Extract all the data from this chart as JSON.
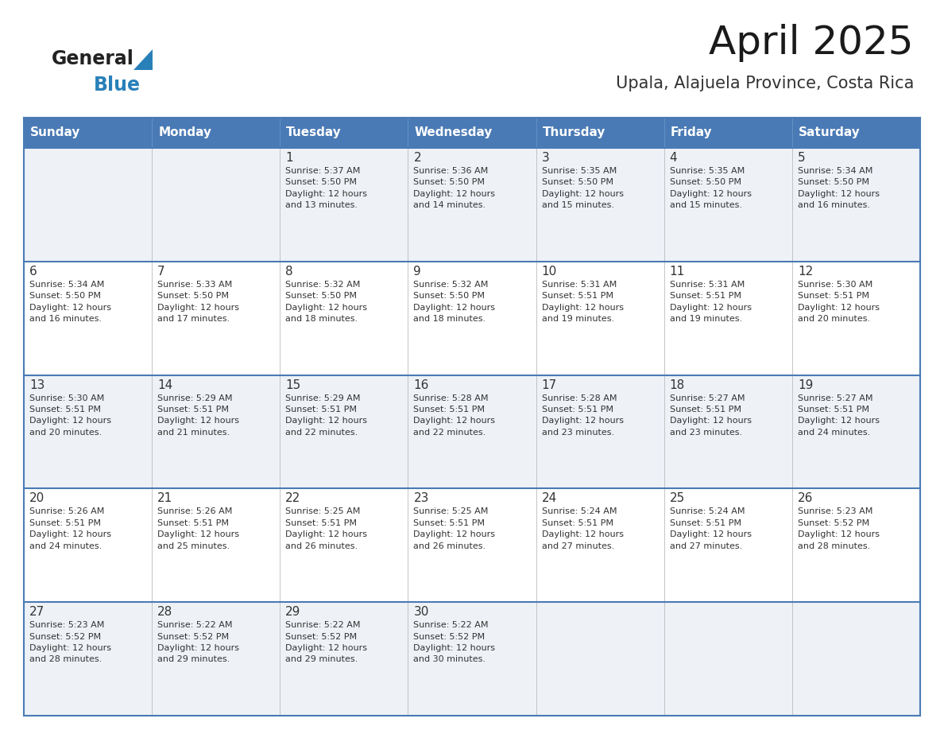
{
  "title": "April 2025",
  "subtitle": "Upala, Alajuela Province, Costa Rica",
  "days_of_week": [
    "Sunday",
    "Monday",
    "Tuesday",
    "Wednesday",
    "Thursday",
    "Friday",
    "Saturday"
  ],
  "header_bg": "#4a7ab5",
  "header_text": "#ffffff",
  "row_bg_light": "#eef2f7",
  "row_bg_white": "#ffffff",
  "cell_text_color": "#333333",
  "day_num_color": "#333333",
  "border_color": "#4a7ab5",
  "logo_general_color": "#222222",
  "logo_blue_color": "#2980b9",
  "logo_triangle_color": "#2980b9",
  "calendar": [
    [
      {
        "day": null,
        "info": null
      },
      {
        "day": null,
        "info": null
      },
      {
        "day": 1,
        "info": "Sunrise: 5:37 AM\nSunset: 5:50 PM\nDaylight: 12 hours\nand 13 minutes."
      },
      {
        "day": 2,
        "info": "Sunrise: 5:36 AM\nSunset: 5:50 PM\nDaylight: 12 hours\nand 14 minutes."
      },
      {
        "day": 3,
        "info": "Sunrise: 5:35 AM\nSunset: 5:50 PM\nDaylight: 12 hours\nand 15 minutes."
      },
      {
        "day": 4,
        "info": "Sunrise: 5:35 AM\nSunset: 5:50 PM\nDaylight: 12 hours\nand 15 minutes."
      },
      {
        "day": 5,
        "info": "Sunrise: 5:34 AM\nSunset: 5:50 PM\nDaylight: 12 hours\nand 16 minutes."
      }
    ],
    [
      {
        "day": 6,
        "info": "Sunrise: 5:34 AM\nSunset: 5:50 PM\nDaylight: 12 hours\nand 16 minutes."
      },
      {
        "day": 7,
        "info": "Sunrise: 5:33 AM\nSunset: 5:50 PM\nDaylight: 12 hours\nand 17 minutes."
      },
      {
        "day": 8,
        "info": "Sunrise: 5:32 AM\nSunset: 5:50 PM\nDaylight: 12 hours\nand 18 minutes."
      },
      {
        "day": 9,
        "info": "Sunrise: 5:32 AM\nSunset: 5:50 PM\nDaylight: 12 hours\nand 18 minutes."
      },
      {
        "day": 10,
        "info": "Sunrise: 5:31 AM\nSunset: 5:51 PM\nDaylight: 12 hours\nand 19 minutes."
      },
      {
        "day": 11,
        "info": "Sunrise: 5:31 AM\nSunset: 5:51 PM\nDaylight: 12 hours\nand 19 minutes."
      },
      {
        "day": 12,
        "info": "Sunrise: 5:30 AM\nSunset: 5:51 PM\nDaylight: 12 hours\nand 20 minutes."
      }
    ],
    [
      {
        "day": 13,
        "info": "Sunrise: 5:30 AM\nSunset: 5:51 PM\nDaylight: 12 hours\nand 20 minutes."
      },
      {
        "day": 14,
        "info": "Sunrise: 5:29 AM\nSunset: 5:51 PM\nDaylight: 12 hours\nand 21 minutes."
      },
      {
        "day": 15,
        "info": "Sunrise: 5:29 AM\nSunset: 5:51 PM\nDaylight: 12 hours\nand 22 minutes."
      },
      {
        "day": 16,
        "info": "Sunrise: 5:28 AM\nSunset: 5:51 PM\nDaylight: 12 hours\nand 22 minutes."
      },
      {
        "day": 17,
        "info": "Sunrise: 5:28 AM\nSunset: 5:51 PM\nDaylight: 12 hours\nand 23 minutes."
      },
      {
        "day": 18,
        "info": "Sunrise: 5:27 AM\nSunset: 5:51 PM\nDaylight: 12 hours\nand 23 minutes."
      },
      {
        "day": 19,
        "info": "Sunrise: 5:27 AM\nSunset: 5:51 PM\nDaylight: 12 hours\nand 24 minutes."
      }
    ],
    [
      {
        "day": 20,
        "info": "Sunrise: 5:26 AM\nSunset: 5:51 PM\nDaylight: 12 hours\nand 24 minutes."
      },
      {
        "day": 21,
        "info": "Sunrise: 5:26 AM\nSunset: 5:51 PM\nDaylight: 12 hours\nand 25 minutes."
      },
      {
        "day": 22,
        "info": "Sunrise: 5:25 AM\nSunset: 5:51 PM\nDaylight: 12 hours\nand 26 minutes."
      },
      {
        "day": 23,
        "info": "Sunrise: 5:25 AM\nSunset: 5:51 PM\nDaylight: 12 hours\nand 26 minutes."
      },
      {
        "day": 24,
        "info": "Sunrise: 5:24 AM\nSunset: 5:51 PM\nDaylight: 12 hours\nand 27 minutes."
      },
      {
        "day": 25,
        "info": "Sunrise: 5:24 AM\nSunset: 5:51 PM\nDaylight: 12 hours\nand 27 minutes."
      },
      {
        "day": 26,
        "info": "Sunrise: 5:23 AM\nSunset: 5:52 PM\nDaylight: 12 hours\nand 28 minutes."
      }
    ],
    [
      {
        "day": 27,
        "info": "Sunrise: 5:23 AM\nSunset: 5:52 PM\nDaylight: 12 hours\nand 28 minutes."
      },
      {
        "day": 28,
        "info": "Sunrise: 5:22 AM\nSunset: 5:52 PM\nDaylight: 12 hours\nand 29 minutes."
      },
      {
        "day": 29,
        "info": "Sunrise: 5:22 AM\nSunset: 5:52 PM\nDaylight: 12 hours\nand 29 minutes."
      },
      {
        "day": 30,
        "info": "Sunrise: 5:22 AM\nSunset: 5:52 PM\nDaylight: 12 hours\nand 30 minutes."
      },
      {
        "day": null,
        "info": null
      },
      {
        "day": null,
        "info": null
      },
      {
        "day": null,
        "info": null
      }
    ]
  ]
}
